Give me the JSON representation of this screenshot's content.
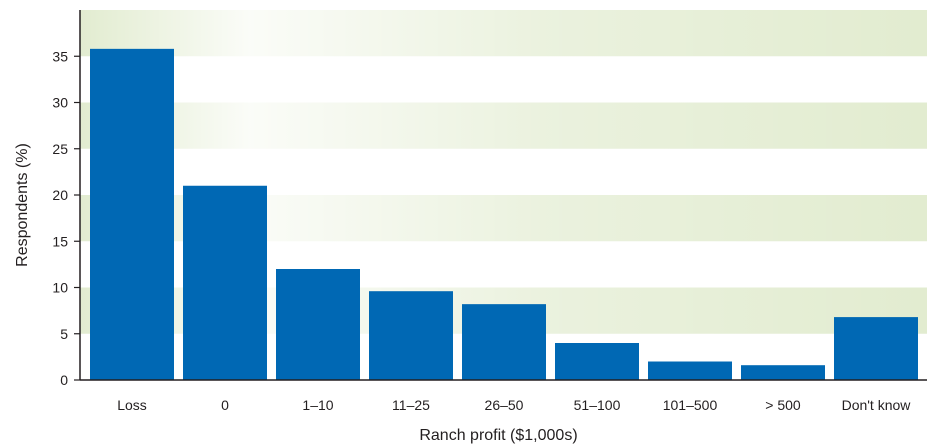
{
  "chart_data": {
    "type": "bar",
    "categories": [
      "Loss",
      "0",
      "1–10",
      "11–25",
      "26–50",
      "51–100",
      "101–500",
      "> 500",
      "Don't know"
    ],
    "values": [
      35.8,
      21.0,
      12.0,
      9.6,
      8.2,
      4.0,
      2.0,
      1.6,
      6.8
    ],
    "xlabel": "Ranch profit ($1,000s)",
    "ylabel": "Respondents (%)",
    "ylim": [
      0,
      40
    ],
    "yticks": [
      0,
      5,
      10,
      15,
      20,
      25,
      30,
      35
    ],
    "bar_color": "#0068b4",
    "band_color": "#e2ecd0",
    "grid": false,
    "background": "alternating horizontal bands every 5%, fading left to right"
  }
}
